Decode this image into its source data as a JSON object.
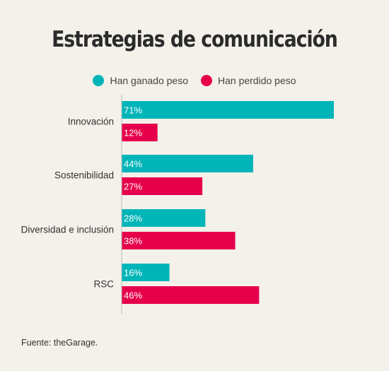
{
  "title": "Estrategias de comunicación",
  "source": "Fuente: theGarage.",
  "colors": {
    "gained": "#00b5b8",
    "lost": "#e6004c"
  },
  "legend": [
    {
      "label": "Han ganado peso",
      "color": "#00b5b8"
    },
    {
      "label": "Han perdido peso",
      "color": "#e6004c"
    }
  ],
  "chart_data": {
    "type": "bar",
    "orientation": "horizontal",
    "categories": [
      "Innovación",
      "Sostenibilidad",
      "Diversidad e inclusión",
      "RSC"
    ],
    "series": [
      {
        "name": "Han ganado peso",
        "values": [
          71,
          44,
          28,
          16
        ],
        "labels": [
          "71%",
          "44%",
          "28%",
          "16%"
        ]
      },
      {
        "name": "Han perdido peso",
        "values": [
          12,
          27,
          38,
          46
        ],
        "labels": [
          "12%",
          "27%",
          "38%",
          "46%"
        ]
      }
    ],
    "xlim": [
      0,
      71
    ],
    "legend_position": "top-center",
    "grid": false
  }
}
